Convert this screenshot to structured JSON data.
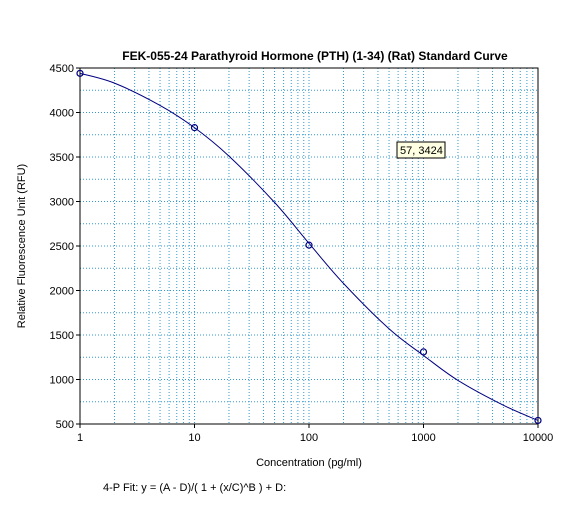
{
  "chart_data": {
    "type": "scatter",
    "title": "FEK-055-24 Parathyroid Hormone (PTH) (1-34) (Rat) Standard Curve",
    "xlabel": "Concentration (pg/ml)",
    "ylabel": "Relative Fluorescence Unit (RFU)",
    "x_scale": "log",
    "xlim": [
      1,
      10000
    ],
    "ylim": [
      500,
      4500
    ],
    "x_ticks": [
      "1",
      "10",
      "100",
      "1000",
      "10000"
    ],
    "y_ticks": [
      "500",
      "1000",
      "1500",
      "2000",
      "2500",
      "3000",
      "3500",
      "4000",
      "4500"
    ],
    "grid": true,
    "series": [
      {
        "values": [
          {
            "x": 1,
            "y": 4440
          },
          {
            "x": 10,
            "y": 3830
          },
          {
            "x": 100,
            "y": 2510
          },
          {
            "x": 1000,
            "y": 1310
          },
          {
            "x": 10000,
            "y": 540
          }
        ]
      }
    ],
    "curve": [
      {
        "x": 1,
        "y": 4440
      },
      {
        "x": 2,
        "y": 4330
      },
      {
        "x": 5,
        "y": 4080
      },
      {
        "x": 10,
        "y": 3830
      },
      {
        "x": 20,
        "y": 3510
      },
      {
        "x": 50,
        "y": 2990
      },
      {
        "x": 100,
        "y": 2530
      },
      {
        "x": 200,
        "y": 2080
      },
      {
        "x": 500,
        "y": 1570
      },
      {
        "x": 1000,
        "y": 1270
      },
      {
        "x": 2000,
        "y": 990
      },
      {
        "x": 5000,
        "y": 710
      },
      {
        "x": 10000,
        "y": 540
      }
    ],
    "fit_label": "4-P Fit:  y = (A - D)/( 1 + (x/C)^B ) + D:",
    "tooltip": "57, 3424",
    "colors": {
      "curve": "#000080",
      "points": "#000080",
      "grid": "#3399cc",
      "frame": "#000000"
    }
  }
}
